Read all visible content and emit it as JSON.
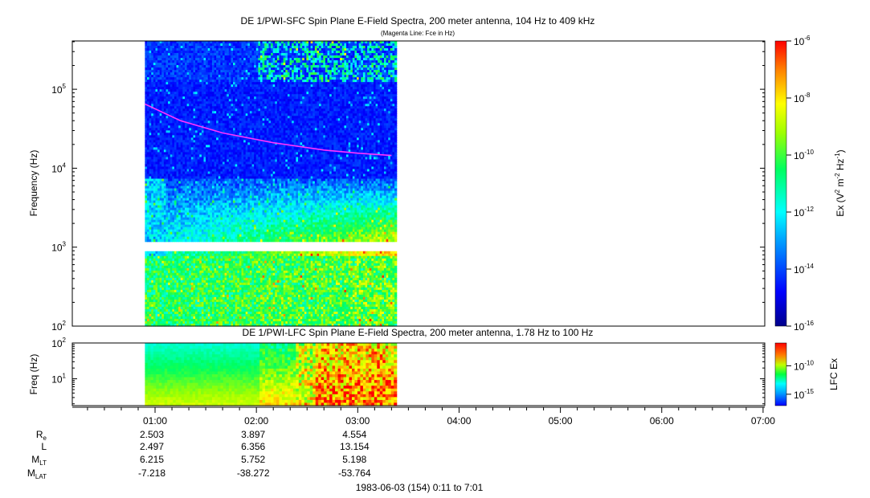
{
  "chart_data": [
    {
      "type": "heatmap",
      "name_key": "sfc",
      "title": "DE 1/PWI-SFC  Spin Plane E-Field Spectra, 200 meter antenna, 104 Hz to 409 kHz",
      "subtitle": "(Magenta Line: Fce in Hz)",
      "ylabel": "Frequency (Hz)",
      "yscale": "log",
      "ylim": [
        100,
        409000
      ],
      "y_ticks": [
        {
          "value": 100,
          "base": "10",
          "exp": "2"
        },
        {
          "value": 1000,
          "base": "10",
          "exp": "3"
        },
        {
          "value": 10000,
          "base": "10",
          "exp": "4"
        },
        {
          "value": 100000,
          "base": "10",
          "exp": "5"
        }
      ],
      "data_time_range": [
        "00:54",
        "03:23"
      ],
      "gap_hz": [
        900,
        1100
      ],
      "colorbar": {
        "scale": "log",
        "range": [
          1e-16,
          1e-06
        ],
        "label_parts": {
          "a": "Ex (V",
          "b": "2",
          "c": " m",
          "d": "-2",
          "e": " Hz",
          "f": "-1",
          "g": ")"
        },
        "ticks": [
          {
            "value": 1e-06,
            "base": "10",
            "exp": "-6"
          },
          {
            "value": 1e-08,
            "base": "10",
            "exp": "-8"
          },
          {
            "value": 1e-10,
            "base": "10",
            "exp": "-10"
          },
          {
            "value": 1e-12,
            "base": "10",
            "exp": "-12"
          },
          {
            "value": 1e-14,
            "base": "10",
            "exp": "-14"
          },
          {
            "value": 1e-16,
            "base": "10",
            "exp": "-16"
          }
        ]
      },
      "fce_line": {
        "color": "#ff33ff",
        "points": [
          {
            "t": "00:54",
            "hz": 65000
          },
          {
            "t": "01:15",
            "hz": 40000
          },
          {
            "t": "01:40",
            "hz": 28000
          },
          {
            "t": "02:10",
            "hz": 21000
          },
          {
            "t": "02:40",
            "hz": 17000
          },
          {
            "t": "03:00",
            "hz": 15500
          },
          {
            "t": "03:20",
            "hz": 14500
          }
        ]
      }
    },
    {
      "type": "heatmap",
      "name_key": "lfc",
      "title": "DE 1/PWI-LFC  Spin Plane E-Field Spectra, 200 meter antenna, 1.78 Hz to 100 Hz",
      "ylabel": "Freq (Hz)",
      "yscale": "log",
      "ylim": [
        1.78,
        100
      ],
      "y_ticks": [
        {
          "value": 10,
          "base": "10",
          "exp": "1"
        },
        {
          "value": 100,
          "base": "10",
          "exp": "2"
        }
      ],
      "data_time_range": [
        "00:54",
        "03:23"
      ],
      "colorbar": {
        "scale": "log",
        "range": [
          1e-17,
          1e-06
        ],
        "label": "LFC Ex",
        "ticks": [
          {
            "value": 1e-10,
            "base": "10",
            "exp": "-10"
          },
          {
            "value": 1e-15,
            "base": "10",
            "exp": "-15"
          }
        ]
      }
    }
  ],
  "time_axis": {
    "range": [
      "00:11",
      "07:01"
    ],
    "tick_labels": [
      "01:00",
      "02:00",
      "03:00",
      "04:00",
      "05:00",
      "06:00",
      "07:00"
    ]
  },
  "ephemeris": {
    "rows": [
      {
        "key": "re",
        "label": "R",
        "sub": "e",
        "values": [
          "2.503",
          "3.897",
          "4.554"
        ]
      },
      {
        "key": "l",
        "label": "L",
        "sub": "",
        "values": [
          "2.497",
          "6.356",
          "13.154"
        ]
      },
      {
        "key": "mlt",
        "label": "M",
        "sub": "LT",
        "values": [
          "6.215",
          "5.752",
          "5.198"
        ]
      },
      {
        "key": "mlat",
        "label": "M",
        "sub": "LAT",
        "values": [
          "-7.218",
          "-38.272",
          "-53.764"
        ]
      }
    ]
  },
  "date_label": "1983-06-03 (154) 0:11 to 7:01"
}
